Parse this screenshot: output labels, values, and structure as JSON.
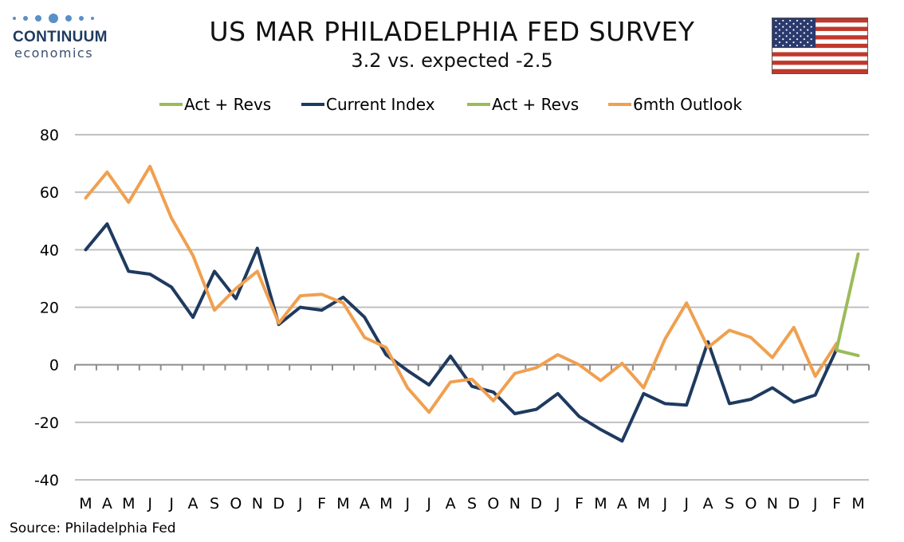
{
  "header": {
    "title": "US MAR PHILADELPHIA FED SURVEY",
    "subtitle": "3.2 vs. expected -2.5"
  },
  "logo": {
    "brand": "CONTINUUM",
    "sub": "economics"
  },
  "flag": {
    "icon": "us-flag-icon"
  },
  "source": "Source: Philadelphia Fed",
  "colors": {
    "current": "#1f3a5f",
    "outlook": "#f0a050",
    "revision": "#9bbb59",
    "grid": "#c0c0c0"
  },
  "chart_data": {
    "type": "line",
    "categories": [
      "M",
      "A",
      "M",
      "J",
      "J",
      "A",
      "S",
      "O",
      "N",
      "D",
      "J",
      "F",
      "M",
      "A",
      "M",
      "J",
      "J",
      "A",
      "S",
      "O",
      "N",
      "D",
      "J",
      "F",
      "M",
      "A",
      "M",
      "J",
      "J",
      "A",
      "S",
      "O",
      "N",
      "D",
      "J",
      "F",
      "M"
    ],
    "ylim": [
      -40,
      80
    ],
    "yticks": [
      -40,
      -20,
      0,
      20,
      40,
      60,
      80
    ],
    "grid": true,
    "legend_position": "top",
    "legend": [
      "Act + Revs",
      "Current Index",
      "Act + Revs",
      "6mth Outlook"
    ],
    "series": [
      {
        "name": "Current Index",
        "color": "#1f3a5f",
        "values": [
          40,
          49,
          32.5,
          31.5,
          27,
          16.5,
          32.5,
          23,
          40.5,
          14,
          20,
          19,
          23.5,
          16.5,
          3.5,
          -2,
          -7,
          3,
          -7.5,
          -9.5,
          -17,
          -15.5,
          -10,
          -18,
          -22.5,
          -26.5,
          -10,
          -13.5,
          -14,
          8,
          -13.5,
          -12,
          -8,
          -13,
          -10.5,
          5.5,
          null
        ]
      },
      {
        "name": "6mth Outlook",
        "color": "#f0a050",
        "values": [
          58,
          67,
          56.5,
          69,
          51,
          38,
          19,
          26.5,
          32.5,
          14.5,
          24,
          24.5,
          21.5,
          9.5,
          6,
          -8,
          -16.5,
          -6,
          -5,
          -12.5,
          -3,
          -1,
          3.5,
          0,
          -5.5,
          0.5,
          -8,
          9,
          21.5,
          6,
          12,
          9.5,
          2.5,
          13,
          -4,
          7.5,
          null
        ]
      },
      {
        "name": "Act + Revs",
        "color": "#9bbb59",
        "values": [
          null,
          null,
          null,
          null,
          null,
          null,
          null,
          null,
          null,
          null,
          null,
          null,
          null,
          null,
          null,
          null,
          null,
          null,
          null,
          null,
          null,
          null,
          null,
          null,
          null,
          null,
          null,
          null,
          null,
          null,
          null,
          null,
          null,
          null,
          null,
          5.5,
          38.5
        ]
      },
      {
        "name": "Act + Revs",
        "color": "#9bbb59",
        "values": [
          null,
          null,
          null,
          null,
          null,
          null,
          null,
          null,
          null,
          null,
          null,
          null,
          null,
          null,
          null,
          null,
          null,
          null,
          null,
          null,
          null,
          null,
          null,
          null,
          null,
          null,
          null,
          null,
          null,
          null,
          null,
          null,
          null,
          null,
          null,
          5,
          3.2
        ]
      }
    ]
  }
}
